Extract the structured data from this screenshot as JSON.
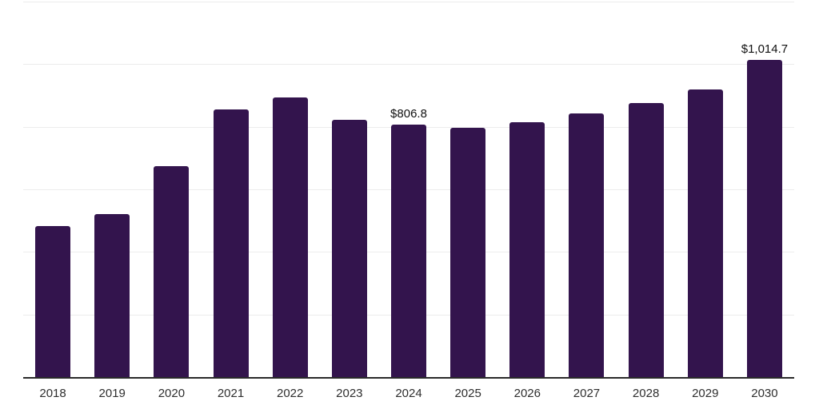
{
  "chart_data": {
    "type": "bar",
    "title": "",
    "xlabel": "",
    "ylabel": "",
    "categories": [
      "2018",
      "2019",
      "2020",
      "2021",
      "2022",
      "2023",
      "2024",
      "2025",
      "2026",
      "2027",
      "2028",
      "2029",
      "2030"
    ],
    "values": [
      483,
      521,
      675,
      855,
      894,
      823,
      806.8,
      797,
      814,
      842,
      876,
      918.5,
      1014.7
    ],
    "labeled_points": [
      {
        "category": "2024",
        "label": "$806.8"
      },
      {
        "category": "2030",
        "label": "$1,014.7"
      }
    ],
    "ylim": [
      0,
      1200
    ],
    "grid_step": 200,
    "grid": true,
    "legend": false,
    "y_tick_labels_visible": false,
    "bar_color": "#33144d",
    "axis_color": "#2a2a2a",
    "gridline_color": "#ececec",
    "value_label_color": "#111111",
    "tick_label_color": "#2e2e2e",
    "background_color": "#ffffff"
  }
}
